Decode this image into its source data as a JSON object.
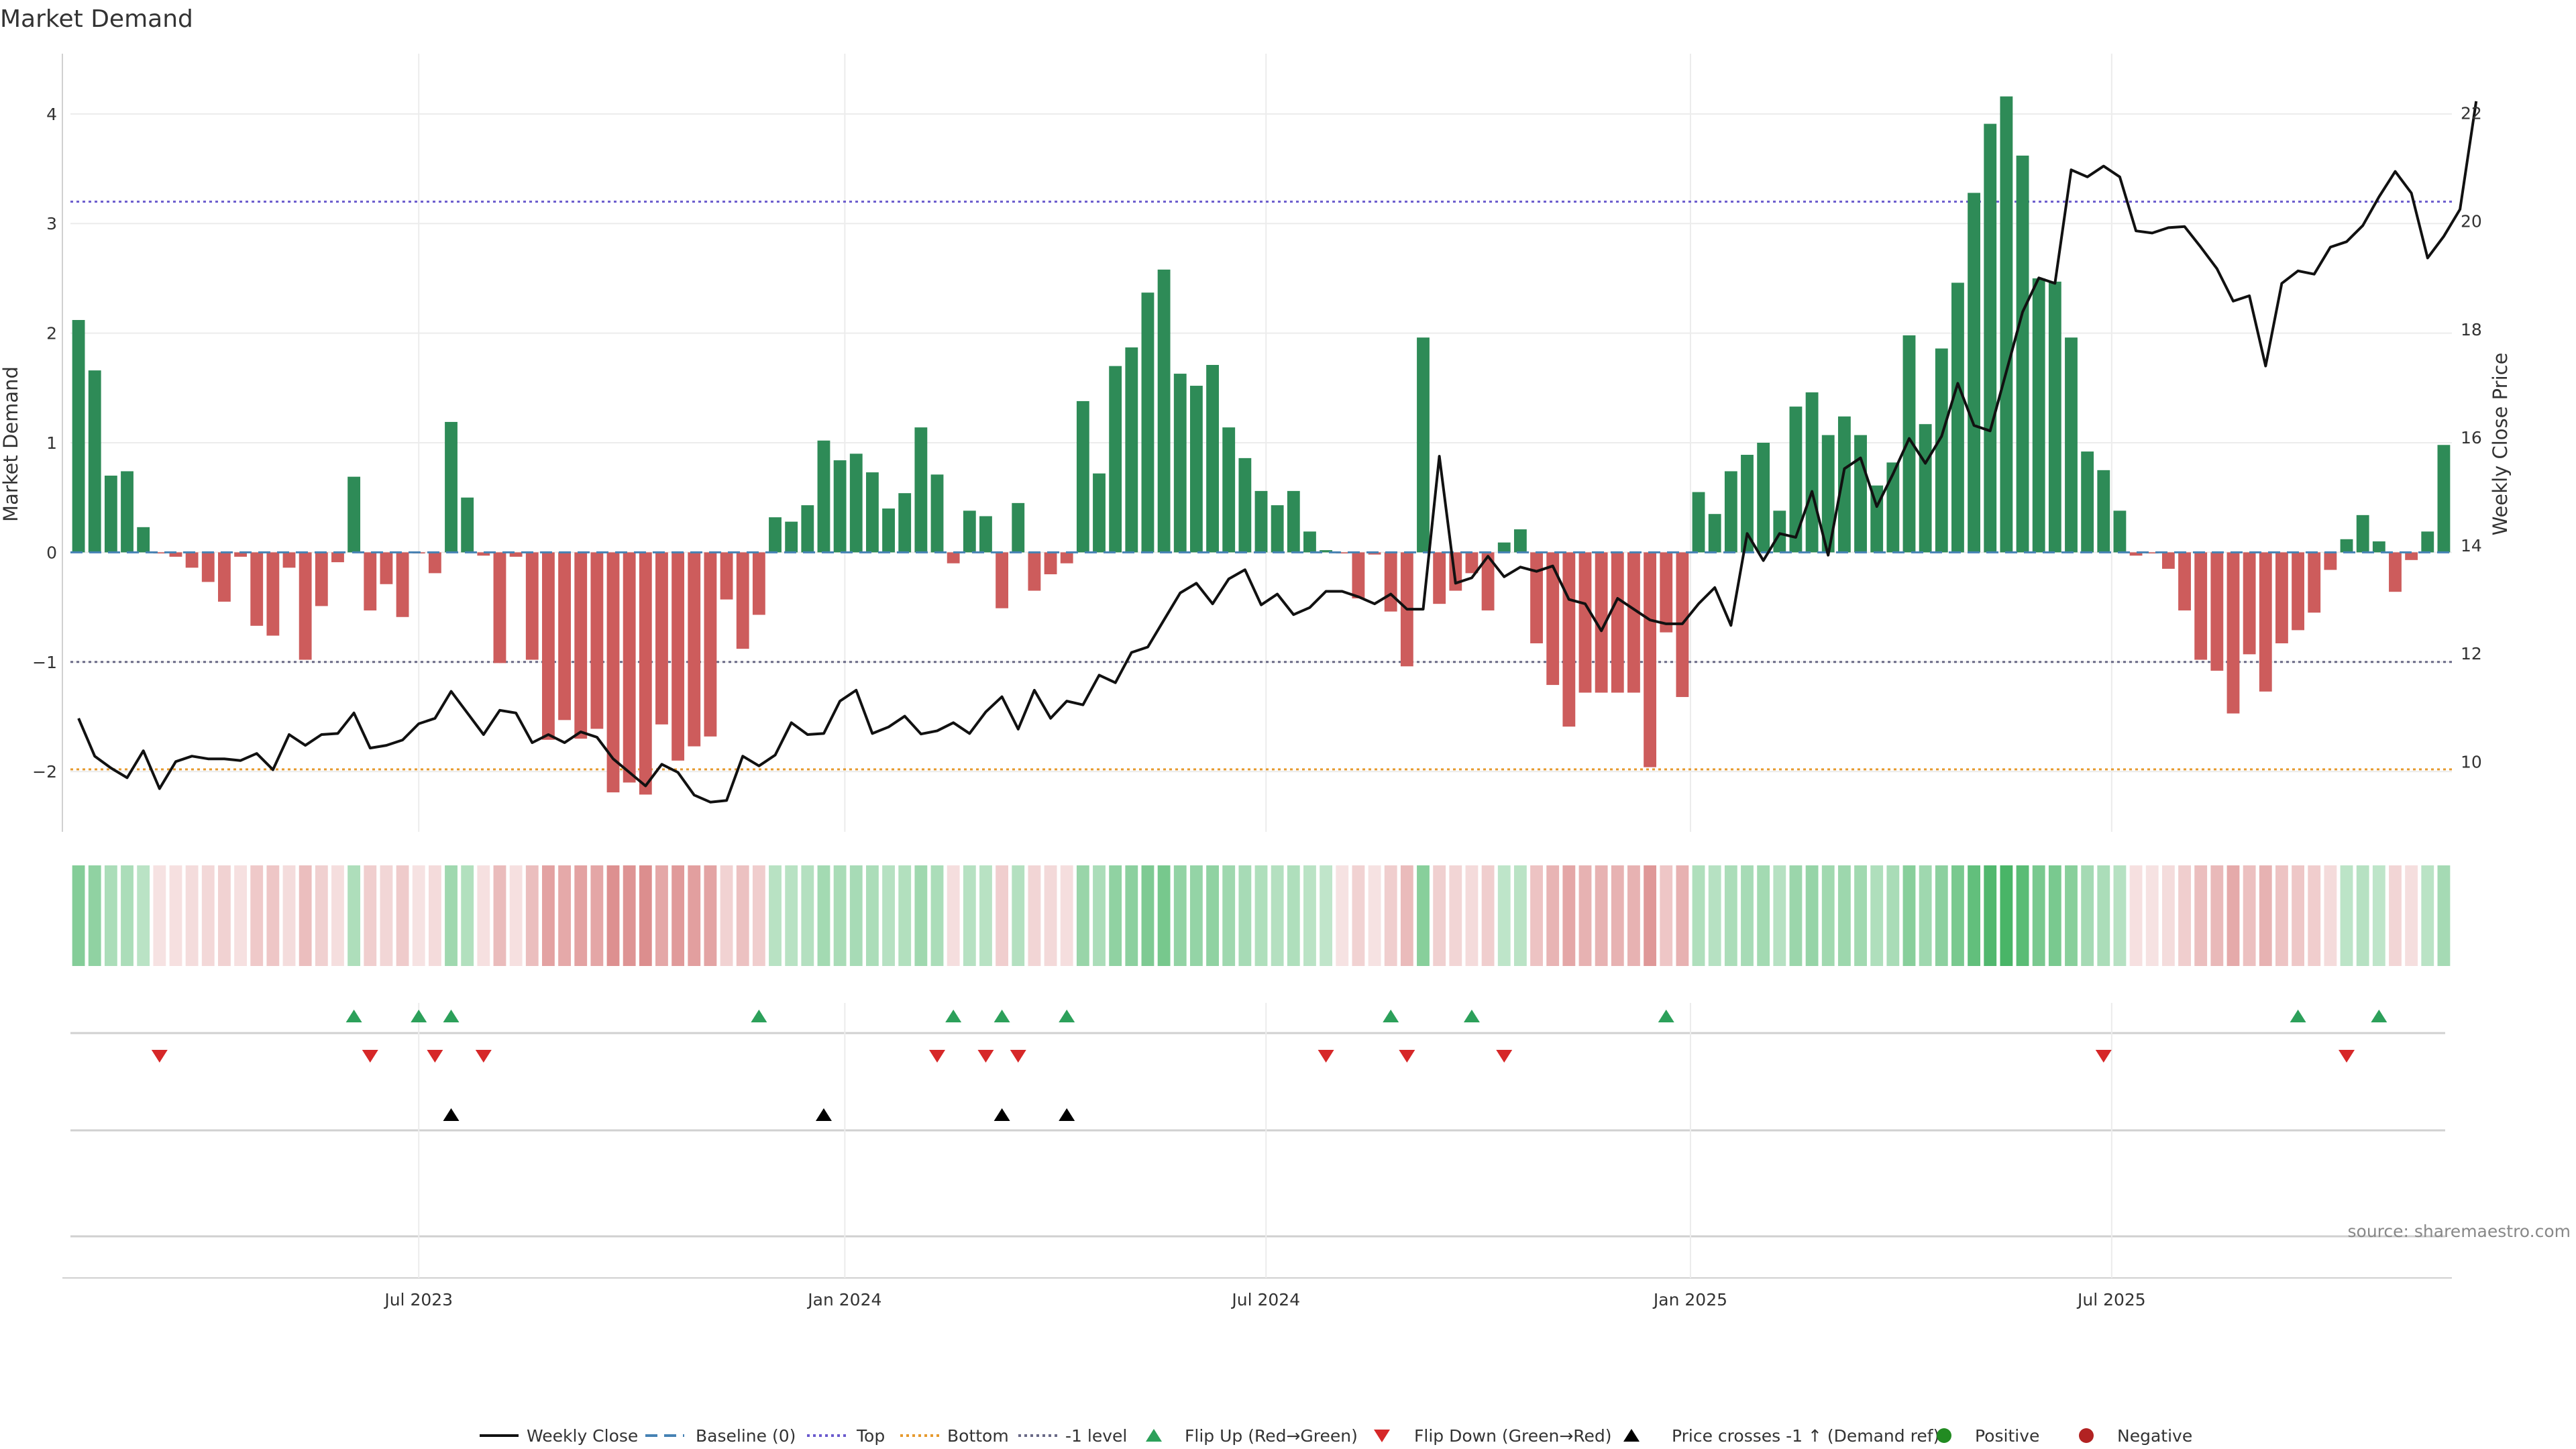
{
  "chart_data": {
    "type": "bar",
    "title": "Market Demand",
    "ylabel": "Market Demand",
    "y2label": "Weekly Close Price",
    "ylim": [
      -2.55,
      4.55
    ],
    "y2lim": [
      8.7,
      23.1
    ],
    "yticks": [
      "−2",
      "−1",
      "0",
      "1",
      "2",
      "3",
      "4"
    ],
    "y2ticks": [
      "10",
      "12",
      "14",
      "16",
      "18",
      "20",
      "22"
    ],
    "x_ticks": [
      {
        "label": "Jul 2023",
        "week": 21.5
      },
      {
        "label": "Jan 2024",
        "week": 47.8
      },
      {
        "label": "Jul 2024",
        "week": 73.8
      },
      {
        "label": "Jan 2025",
        "week": 100
      },
      {
        "label": "Jul 2025",
        "week": 126
      }
    ],
    "levels": {
      "top": 3.2,
      "bottom": -1.98,
      "minus_one": -1.0,
      "baseline": 0
    },
    "series": [
      {
        "name": "Market Demand",
        "values": [
          2.12,
          1.66,
          0.7,
          0.74,
          0.23,
          -0.01,
          -0.04,
          -0.14,
          -0.27,
          -0.45,
          -0.04,
          -0.67,
          -0.76,
          -0.14,
          -0.98,
          -0.49,
          -0.09,
          0.69,
          -0.53,
          -0.29,
          -0.59,
          -0.01,
          -0.19,
          1.19,
          0.5,
          -0.03,
          -1.01,
          -0.04,
          -0.98,
          -1.71,
          -1.53,
          -1.7,
          -1.61,
          -2.19,
          -2.1,
          -2.21,
          -1.57,
          -1.9,
          -1.77,
          -1.68,
          -0.43,
          -0.88,
          -0.57,
          0.32,
          0.28,
          0.43,
          1.02,
          0.84,
          0.9,
          0.73,
          0.4,
          0.54,
          1.14,
          0.71,
          -0.1,
          0.38,
          0.33,
          -0.51,
          0.45,
          -0.35,
          -0.2,
          -0.1,
          1.38,
          0.72,
          1.7,
          1.87,
          2.37,
          2.58,
          1.63,
          1.52,
          1.71,
          1.14,
          0.86,
          0.56,
          0.43,
          0.56,
          0.19,
          0.02,
          -0.01,
          -0.42,
          -0.02,
          -0.54,
          -1.04,
          1.96,
          -0.47,
          -0.35,
          -0.19,
          -0.53,
          0.09,
          0.21,
          -0.83,
          -1.21,
          -1.59,
          -1.28,
          -1.28,
          -1.28,
          -1.28,
          -1.96,
          -0.73,
          -1.32,
          0.55,
          0.35,
          0.74,
          0.89,
          1.0,
          0.38,
          1.33,
          1.46,
          1.07,
          1.24,
          1.07,
          0.61,
          0.82,
          1.98,
          1.17,
          1.86,
          2.46,
          3.28,
          3.91,
          4.16,
          3.62,
          2.5,
          2.47,
          1.96,
          0.92,
          0.75,
          0.38,
          -0.03,
          -0.01,
          -0.15,
          -0.53,
          -0.98,
          -1.08,
          -1.47,
          -0.93,
          -1.27,
          -0.83,
          -0.71,
          -0.55,
          -0.16,
          0.12,
          0.34,
          0.1,
          -0.36,
          -0.07,
          0.19,
          0.98
        ]
      },
      {
        "name": "Weekly Close",
        "values": [
          10.8,
          10.1,
          9.88,
          9.7,
          10.2,
          9.5,
          10.0,
          10.1,
          10.05,
          10.05,
          10.02,
          10.15,
          9.85,
          10.5,
          10.3,
          10.5,
          10.52,
          10.9,
          10.25,
          10.3,
          10.4,
          10.7,
          10.8,
          11.3,
          10.9,
          10.5,
          10.95,
          10.9,
          10.35,
          10.5,
          10.35,
          10.55,
          10.45,
          10.05,
          9.8,
          9.55,
          9.95,
          9.8,
          9.38,
          9.25,
          9.28,
          10.1,
          9.92,
          10.12,
          10.72,
          10.5,
          10.52,
          11.12,
          11.32,
          10.52,
          10.64,
          10.84,
          10.51,
          10.57,
          10.72,
          10.52,
          10.92,
          11.2,
          10.6,
          11.32,
          10.8,
          11.12,
          11.05,
          11.6,
          11.46,
          12.02,
          12.12,
          12.62,
          13.12,
          13.3,
          12.92,
          13.38,
          13.55,
          12.9,
          13.1,
          12.72,
          12.85,
          13.15,
          13.15,
          13.05,
          12.92,
          13.1,
          12.82,
          12.82,
          15.65,
          13.3,
          13.4,
          13.8,
          13.42,
          13.6,
          13.52,
          13.62,
          13.0,
          12.92,
          12.42,
          13.02,
          12.82,
          12.62,
          12.55,
          12.55,
          12.92,
          13.22,
          12.52,
          14.22,
          13.72,
          14.22,
          14.15,
          15.0,
          13.82,
          15.42,
          15.62,
          14.72,
          15.32,
          15.98,
          15.52,
          16.02,
          17.0,
          16.22,
          16.12,
          17.22,
          18.32,
          18.95,
          18.85,
          20.95,
          20.82,
          21.02,
          20.82,
          19.82,
          19.78,
          19.88,
          19.9,
          19.52,
          19.12,
          18.52,
          18.62,
          17.32,
          18.85,
          19.08,
          19.02,
          19.52,
          19.62,
          19.92,
          20.45,
          20.92,
          20.52,
          19.32,
          19.72,
          20.22,
          22.22
        ]
      }
    ],
    "heat_strip": {
      "ylim": [
        -2.4,
        4.4
      ]
    },
    "signals": {
      "flip_up_weeks": [
        17,
        21,
        23,
        42,
        54,
        57,
        61,
        81,
        86,
        98,
        137,
        142
      ],
      "flip_down_weeks": [
        5,
        18,
        22,
        25,
        53,
        56,
        58,
        77,
        82,
        88,
        125,
        140
      ],
      "price_cross_weeks": [
        23,
        46,
        57,
        61
      ]
    },
    "legend": [
      {
        "label": "Weekly Close",
        "kind": "line"
      },
      {
        "label": "Baseline (0)",
        "kind": "dashed"
      },
      {
        "label": "Top",
        "kind": "dotted-blue"
      },
      {
        "label": "Bottom",
        "kind": "dotted-orange"
      },
      {
        "label": "-1 level",
        "kind": "dotted-grey"
      },
      {
        "label": "Flip Up (Red→Green)",
        "kind": "tri-up-green"
      },
      {
        "label": "Flip Down (Green→Red)",
        "kind": "tri-down-red"
      },
      {
        "label": "Price crosses -1 ↑ (Demand ref)",
        "kind": "tri-up-black"
      },
      {
        "label": "Positive",
        "kind": "dot-green"
      },
      {
        "label": "Negative",
        "kind": "dot-red"
      }
    ],
    "source": "source: sharemaestro.com"
  },
  "colors": {
    "positive": "#2e8b57",
    "negative": "#cd5c5c",
    "price": "#111111",
    "baseline": "#4682b4",
    "top": "#6a5acd",
    "bottom": "#e69a2e",
    "minus_one": "#696986",
    "flip_up": "#2ca05a",
    "flip_down": "#d62728",
    "cross": "#000000",
    "dot_positive": "#228b22",
    "dot_negative": "#b22222",
    "grid": "#ececec",
    "axis": "#d0d0d0"
  }
}
